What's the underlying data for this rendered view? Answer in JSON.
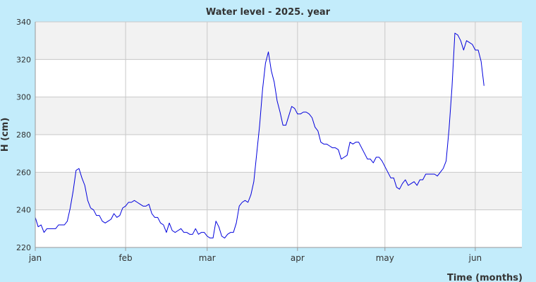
{
  "chart_data": {
    "type": "line",
    "title": "Water level - 2025. year",
    "xlabel": "Time (months)",
    "ylabel": "H (cm)",
    "ylim": [
      220,
      340
    ],
    "y_ticks": [
      220,
      240,
      260,
      280,
      300,
      320,
      340
    ],
    "x_unit": "day of year 2025",
    "xlim": [
      1,
      168
    ],
    "x_ticks": [
      {
        "label": "jan",
        "day": 1
      },
      {
        "label": "feb",
        "day": 32
      },
      {
        "label": "mar",
        "day": 60
      },
      {
        "label": "apr",
        "day": 91
      },
      {
        "label": "may",
        "day": 121
      },
      {
        "label": "jun",
        "day": 152
      }
    ],
    "grid": true,
    "alternating_bands": true,
    "colors": {
      "background": "#c3ecfb",
      "plot_band_light": "#ffffff",
      "plot_band_dark": "#f2f2f2",
      "grid": "#c8c8c8",
      "line": "#0000dd",
      "text": "#333333"
    },
    "series": [
      {
        "points": [
          [
            1,
            236
          ],
          [
            2,
            231
          ],
          [
            3,
            232
          ],
          [
            4,
            228
          ],
          [
            5,
            230
          ],
          [
            6,
            230
          ],
          [
            7,
            230
          ],
          [
            8,
            230
          ],
          [
            9,
            232
          ],
          [
            10,
            232
          ],
          [
            11,
            232
          ],
          [
            12,
            234
          ],
          [
            13,
            241
          ],
          [
            14,
            250
          ],
          [
            15,
            261
          ],
          [
            16,
            262
          ],
          [
            17,
            257
          ],
          [
            18,
            253
          ],
          [
            19,
            245
          ],
          [
            20,
            241
          ],
          [
            21,
            240
          ],
          [
            22,
            237
          ],
          [
            23,
            237
          ],
          [
            24,
            234
          ],
          [
            25,
            233
          ],
          [
            26,
            234
          ],
          [
            27,
            235
          ],
          [
            28,
            238
          ],
          [
            29,
            236
          ],
          [
            30,
            237
          ],
          [
            31,
            241
          ],
          [
            32,
            242
          ],
          [
            33,
            244
          ],
          [
            34,
            244
          ],
          [
            35,
            245
          ],
          [
            36,
            244
          ],
          [
            37,
            243
          ],
          [
            38,
            242
          ],
          [
            39,
            242
          ],
          [
            40,
            243
          ],
          [
            41,
            238
          ],
          [
            42,
            236
          ],
          [
            43,
            236
          ],
          [
            44,
            233
          ],
          [
            45,
            232
          ],
          [
            46,
            228
          ],
          [
            47,
            233
          ],
          [
            48,
            229
          ],
          [
            49,
            228
          ],
          [
            50,
            229
          ],
          [
            51,
            230
          ],
          [
            52,
            228
          ],
          [
            53,
            228
          ],
          [
            54,
            227
          ],
          [
            55,
            227
          ],
          [
            56,
            230
          ],
          [
            57,
            227
          ],
          [
            58,
            228
          ],
          [
            59,
            228
          ],
          [
            60,
            226
          ],
          [
            61,
            225
          ],
          [
            62,
            225
          ],
          [
            63,
            234
          ],
          [
            64,
            231
          ],
          [
            65,
            226
          ],
          [
            66,
            225
          ],
          [
            67,
            227
          ],
          [
            68,
            228
          ],
          [
            69,
            228
          ],
          [
            70,
            233
          ],
          [
            71,
            242
          ],
          [
            72,
            244
          ],
          [
            73,
            245
          ],
          [
            74,
            244
          ],
          [
            75,
            248
          ],
          [
            76,
            255
          ],
          [
            77,
            270
          ],
          [
            78,
            285
          ],
          [
            79,
            304
          ],
          [
            80,
            318
          ],
          [
            81,
            324
          ],
          [
            82,
            314
          ],
          [
            83,
            308
          ],
          [
            84,
            298
          ],
          [
            85,
            292
          ],
          [
            86,
            285
          ],
          [
            87,
            285
          ],
          [
            88,
            290
          ],
          [
            89,
            295
          ],
          [
            90,
            294
          ],
          [
            91,
            291
          ],
          [
            92,
            291
          ],
          [
            93,
            292
          ],
          [
            94,
            292
          ],
          [
            95,
            291
          ],
          [
            96,
            289
          ],
          [
            97,
            284
          ],
          [
            98,
            282
          ],
          [
            99,
            276
          ],
          [
            100,
            275
          ],
          [
            101,
            275
          ],
          [
            102,
            274
          ],
          [
            103,
            273
          ],
          [
            104,
            273
          ],
          [
            105,
            272
          ],
          [
            106,
            267
          ],
          [
            107,
            268
          ],
          [
            108,
            269
          ],
          [
            109,
            276
          ],
          [
            110,
            275
          ],
          [
            111,
            276
          ],
          [
            112,
            276
          ],
          [
            113,
            273
          ],
          [
            114,
            270
          ],
          [
            115,
            267
          ],
          [
            116,
            267
          ],
          [
            117,
            265
          ],
          [
            118,
            268
          ],
          [
            119,
            268
          ],
          [
            120,
            266
          ],
          [
            121,
            263
          ],
          [
            122,
            260
          ],
          [
            123,
            257
          ],
          [
            124,
            257
          ],
          [
            125,
            252
          ],
          [
            126,
            251
          ],
          [
            127,
            254
          ],
          [
            128,
            256
          ],
          [
            129,
            253
          ],
          [
            130,
            254
          ],
          [
            131,
            255
          ],
          [
            132,
            253
          ],
          [
            133,
            256
          ],
          [
            134,
            256
          ],
          [
            135,
            259
          ],
          [
            136,
            259
          ],
          [
            137,
            259
          ],
          [
            138,
            259
          ],
          [
            139,
            258
          ],
          [
            140,
            260
          ],
          [
            141,
            262
          ],
          [
            142,
            266
          ],
          [
            143,
            283
          ],
          [
            144,
            305
          ],
          [
            145,
            334
          ],
          [
            146,
            333
          ],
          [
            147,
            330
          ],
          [
            148,
            325
          ],
          [
            149,
            330
          ],
          [
            150,
            329
          ],
          [
            151,
            328
          ],
          [
            152,
            325
          ],
          [
            153,
            325
          ],
          [
            154,
            319
          ],
          [
            155,
            306
          ]
        ]
      }
    ]
  }
}
